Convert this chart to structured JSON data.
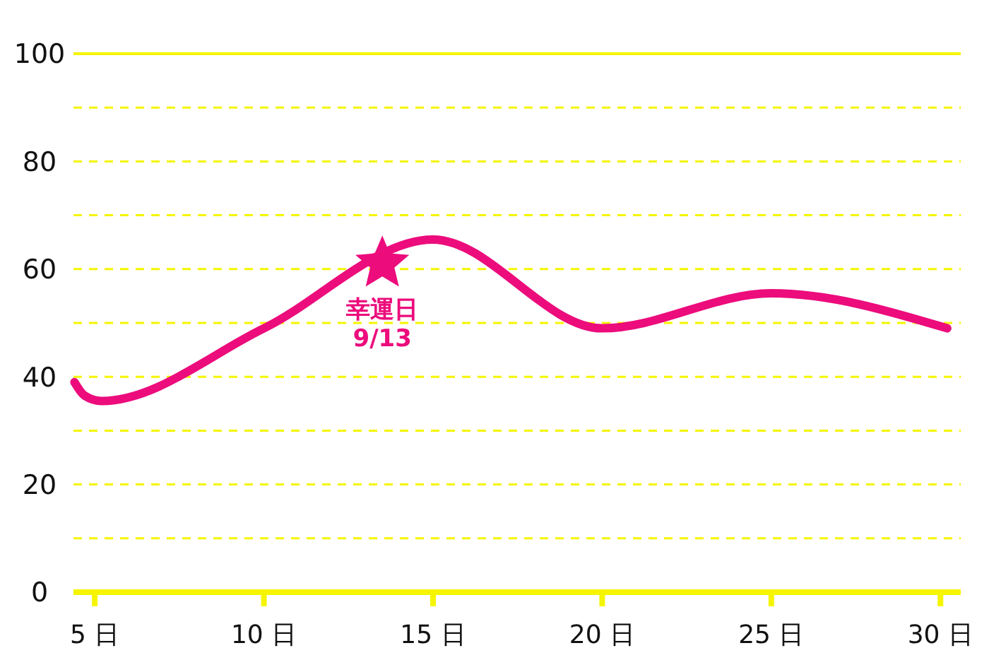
{
  "chart_data": {
    "type": "line",
    "xlim": [
      4.37,
      30.6
    ],
    "ylim": [
      0,
      100
    ],
    "xticks": [
      {
        "value": 5,
        "label": "5 日"
      },
      {
        "value": 10,
        "label": "10 日"
      },
      {
        "value": 15,
        "label": "15 日"
      },
      {
        "value": 20,
        "label": "20 日"
      },
      {
        "value": 25,
        "label": "25 日"
      },
      {
        "value": 30,
        "label": "30 日"
      }
    ],
    "yticks": [
      0,
      {
        "value": 10,
        "label": null
      },
      20,
      {
        "value": 30,
        "label": null
      },
      40,
      {
        "value": 50,
        "label": null
      },
      60,
      {
        "value": 70,
        "label": null
      },
      80,
      {
        "value": 90,
        "label": null
      },
      100
    ],
    "grid": "y",
    "line_style": "solid",
    "series": [
      {
        "color": "#ec0c7c",
        "x": [
          4.4,
          4.7,
          5.2,
          10,
          15,
          20,
          25,
          30.2
        ],
        "values": [
          39,
          36.5,
          35.5,
          49,
          65.5,
          49,
          55.5,
          49
        ]
      },
      {
        "type": "scatter",
        "marker": "star",
        "color": "#ec0c7c",
        "x": [
          13.5
        ],
        "values": [
          61
        ]
      }
    ],
    "annotations": [
      {
        "text": "幸運日\n9/13",
        "x": 13.5,
        "y": 61
      }
    ]
  }
}
